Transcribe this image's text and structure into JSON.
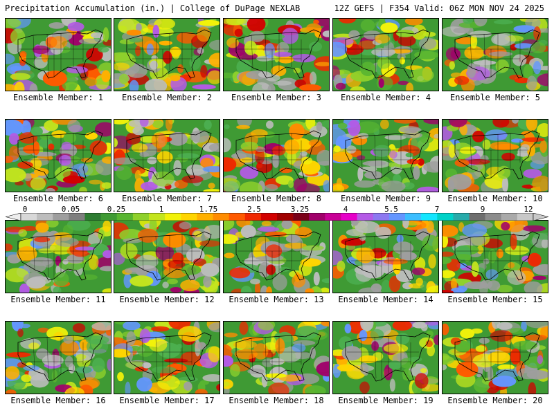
{
  "header": {
    "title": "Precipitation Accumulation (in.) | College of DuPage NEXLAB",
    "run_info": "12Z GEFS | F354 Valid: 06Z MON NOV 24 2025"
  },
  "colorbar": {
    "labels": [
      "0",
      "0.05",
      "0.25",
      "1",
      "1.75",
      "2.5",
      "3.25",
      "4",
      "5.5",
      "7",
      "9",
      "12"
    ],
    "colors": [
      "#d8d8d8",
      "#bdbdbd",
      "#9e9e9e",
      "#7f7f7f",
      "#2e7d32",
      "#3f9a34",
      "#58b531",
      "#8fd12c",
      "#c4e51e",
      "#f2f20a",
      "#ffd500",
      "#ffb000",
      "#ff8c00",
      "#ff5a00",
      "#f02800",
      "#d20000",
      "#a00000",
      "#7a0018",
      "#a0006a",
      "#c80096",
      "#e600c8",
      "#b45ae6",
      "#8c78f0",
      "#6496ff",
      "#3cbeff",
      "#14e6ff",
      "#00d2c8",
      "#28aaaa",
      "#6e6e6e",
      "#8c8c8c",
      "#aaaaaa",
      "#c8c8c8"
    ]
  },
  "members": [
    {
      "label": "Ensemble Member: 1"
    },
    {
      "label": "Ensemble Member: 2"
    },
    {
      "label": "Ensemble Member: 3"
    },
    {
      "label": "Ensemble Member: 4"
    },
    {
      "label": "Ensemble Member: 5"
    },
    {
      "label": "Ensemble Member: 6"
    },
    {
      "label": "Ensemble Member: 7"
    },
    {
      "label": "Ensemble Member: 8"
    },
    {
      "label": "Ensemble Member: 9"
    },
    {
      "label": "Ensemble Member: 10"
    },
    {
      "label": "Ensemble Member: 11"
    },
    {
      "label": "Ensemble Member: 12"
    },
    {
      "label": "Ensemble Member: 13"
    },
    {
      "label": "Ensemble Member: 14"
    },
    {
      "label": "Ensemble Member: 15"
    },
    {
      "label": "Ensemble Member: 16"
    },
    {
      "label": "Ensemble Member: 17"
    },
    {
      "label": "Ensemble Member: 18"
    },
    {
      "label": "Ensemble Member: 19"
    },
    {
      "label": "Ensemble Member: 20"
    }
  ]
}
